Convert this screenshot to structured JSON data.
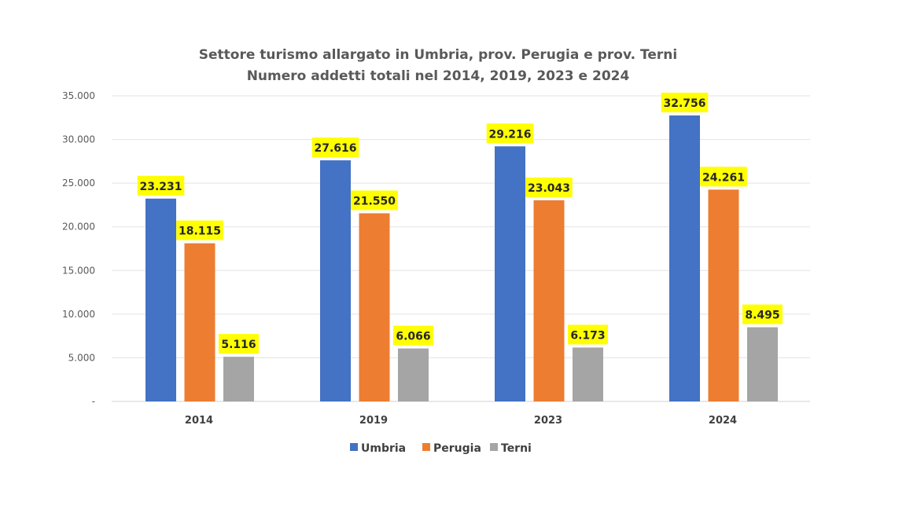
{
  "chart_data": {
    "type": "bar",
    "title": "Settore turismo allargato in Umbria, prov. Perugia e prov. Terni",
    "subtitle": "Numero addetti totali nel 2014, 2019, 2023 e 2024",
    "xlabel": "",
    "ylabel": "",
    "categories": [
      "2014",
      "2019",
      "2023",
      "2024"
    ],
    "series": [
      {
        "name": "Umbria",
        "color": "#4472C4",
        "values": [
          23231,
          27616,
          29216,
          32756
        ],
        "labels": [
          "23.231",
          "27.616",
          "29.216",
          "32.756"
        ]
      },
      {
        "name": "Perugia",
        "color": "#ED7D31",
        "values": [
          18115,
          21550,
          23043,
          24261
        ],
        "labels": [
          "18.115",
          "21.550",
          "23.043",
          "24.261"
        ]
      },
      {
        "name": "Terni",
        "color": "#A5A5A5",
        "values": [
          5116,
          6066,
          6173,
          8495
        ],
        "labels": [
          "5.116",
          "6.066",
          "6.173",
          "8.495"
        ]
      }
    ],
    "ylim": [
      0,
      35000
    ],
    "yticks": [
      0,
      5000,
      10000,
      15000,
      20000,
      25000,
      30000,
      35000
    ],
    "ytick_labels": [
      "-",
      "5.000",
      "10.000",
      "15.000",
      "20.000",
      "25.000",
      "30.000",
      "35.000"
    ],
    "grid": true,
    "legend_position": "bottom",
    "data_label_background": "#FFFF00"
  }
}
